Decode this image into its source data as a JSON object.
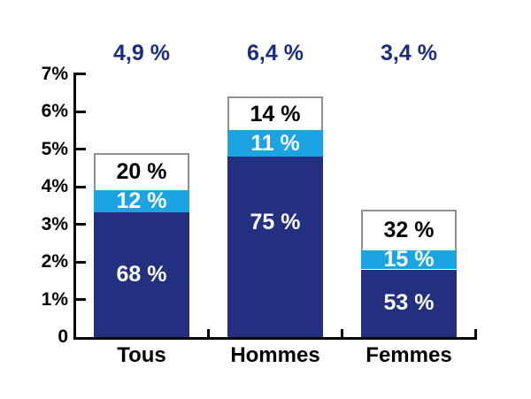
{
  "chart_data": {
    "type": "bar",
    "subtype": "stacked-percentage-bar",
    "categories": [
      "Tous",
      "Hommes",
      "Femmes"
    ],
    "totals_labels": [
      "4,9 %",
      "6,4 %",
      "3,4 %"
    ],
    "totals_values": [
      4.9,
      6.4,
      3.4
    ],
    "series": [
      {
        "name": "dark-blue-segment",
        "color": "#22307f",
        "text_color": "#ffffff",
        "values": [
          68,
          75,
          53
        ],
        "labels": [
          "68 %",
          "75 %",
          "53 %"
        ]
      },
      {
        "name": "light-blue-segment",
        "color": "#1ba4e1",
        "text_color": "#ffffff",
        "values": [
          12,
          11,
          15
        ],
        "labels": [
          "12 %",
          "11 %",
          "15 %"
        ]
      },
      {
        "name": "white-segment",
        "color": "#ffffff",
        "text_color": "#000000",
        "border_color": "#909090",
        "values": [
          20,
          14,
          32
        ],
        "labels": [
          "20 %",
          "14 %",
          "32 %"
        ]
      }
    ],
    "y_tick_labels": [
      "0",
      "1%",
      "2%",
      "3%",
      "4%",
      "5%",
      "6%",
      "7%"
    ],
    "ylim": [
      0,
      7
    ],
    "grid": "off",
    "legend": "none",
    "axis_color": "#000000",
    "total_label_color": "#1b2d80",
    "background_color": "#ffffff"
  }
}
